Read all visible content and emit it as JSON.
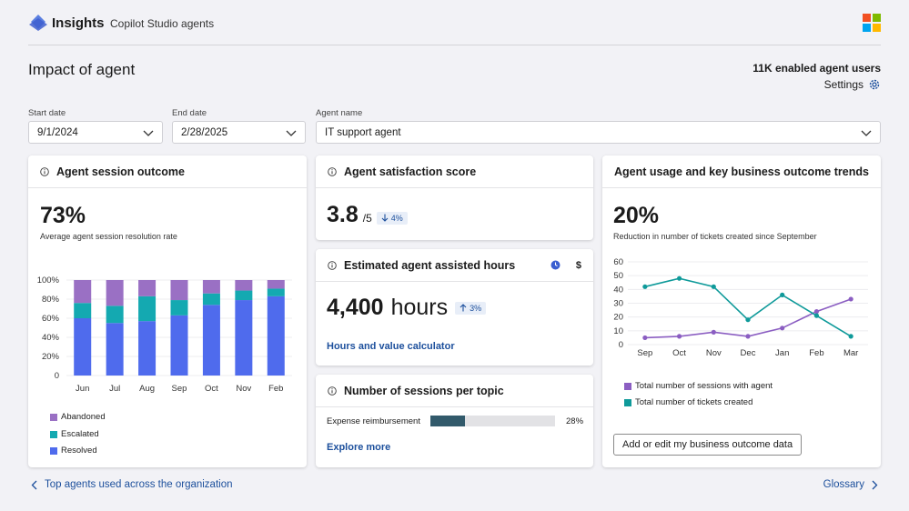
{
  "app": {
    "brand": "Insights",
    "subtitle": "Copilot Studio agents"
  },
  "header": {
    "title": "Impact of agent",
    "users": "11K enabled agent users",
    "settings_label": "Settings"
  },
  "filters": {
    "start_label": "Start date",
    "start_value": "9/1/2024",
    "end_label": "End date",
    "end_value": "2/28/2025",
    "agent_label": "Agent name",
    "agent_value": "IT support agent"
  },
  "session_card": {
    "title": "Agent session outcome",
    "value": "73%",
    "caption": "Average agent session resolution rate",
    "legend": [
      "Abandoned",
      "Escalated",
      "Resolved"
    ]
  },
  "satisfaction_card": {
    "title": "Agent satisfaction score",
    "value": "3.8",
    "suffix": "/5",
    "delta": "4%"
  },
  "hours_card": {
    "title": "Estimated agent assisted hours",
    "value": "4,400",
    "unit": "hours",
    "delta": "3%",
    "link": "Hours and value calculator",
    "currency_symbol": "$"
  },
  "topic_card": {
    "title": "Number of sessions per topic",
    "topic": "Expense reimbursement",
    "percent_label": "28%",
    "percent": 28,
    "link": "Explore more"
  },
  "trends_card": {
    "title": "Agent usage and key business outcome trends",
    "value": "20%",
    "caption": "Reduction in number of tickets created since September",
    "button": "Add or edit my business outcome data"
  },
  "footer": {
    "left_link": "Top agents used across the organization",
    "right_link": "Glossary"
  },
  "colors": {
    "resolved": "#4f6bed",
    "escalated": "#14a9b1",
    "abandoned": "#9a70c4",
    "sessions": "#8b5ec2",
    "tickets": "#0f9a9a",
    "accent": "#1c4f9c"
  },
  "chart_data": [
    {
      "type": "bar",
      "stacked": true,
      "categories": [
        "Jun",
        "Jul",
        "Aug",
        "Sep",
        "Oct",
        "Nov",
        "Feb"
      ],
      "series": [
        {
          "name": "Resolved",
          "values": [
            60,
            55,
            57,
            63,
            74,
            79,
            83
          ]
        },
        {
          "name": "Escalated",
          "values": [
            16,
            18,
            26,
            16,
            12,
            10,
            8
          ]
        },
        {
          "name": "Abandoned",
          "values": [
            24,
            27,
            17,
            21,
            14,
            11,
            9
          ]
        }
      ],
      "yticks": [
        "0",
        "20%",
        "40%",
        "60%",
        "80%",
        "100%"
      ],
      "ylim": [
        0,
        100
      ]
    },
    {
      "type": "line",
      "categories": [
        "Sep",
        "Oct",
        "Nov",
        "Dec",
        "Jan",
        "Feb",
        "Mar"
      ],
      "series": [
        {
          "name": "Total number of sessions with agent",
          "values": [
            5,
            6,
            9,
            6,
            12,
            24,
            33
          ]
        },
        {
          "name": "Total number of tickets created",
          "values": [
            42,
            48,
            42,
            18,
            36,
            21,
            6
          ]
        }
      ],
      "yticks": [
        "0",
        "10",
        "20",
        "30",
        "40",
        "50",
        "60"
      ],
      "ylim": [
        0,
        60
      ]
    }
  ]
}
